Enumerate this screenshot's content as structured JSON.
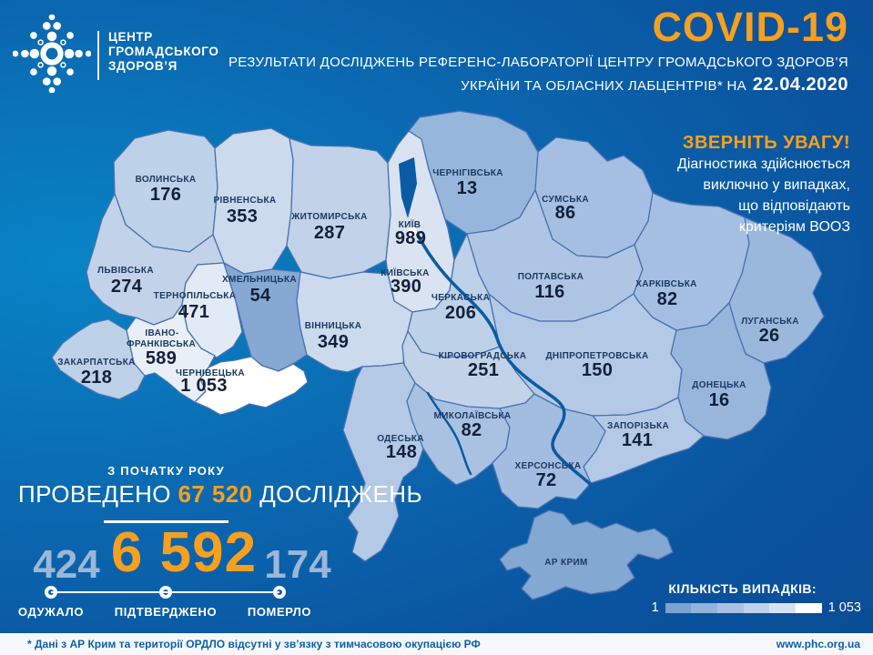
{
  "header": {
    "logo_lines": [
      "ЦЕНТР",
      "ГРОМАДСЬКОГО",
      "ЗДОРОВ’Я"
    ],
    "title": "COVID-19",
    "subtitle_line1": "РЕЗУЛЬТАТИ ДОСЛІДЖЕНЬ РЕФЕРЕНС-ЛАБОРАТОРІЇ ЦЕНТРУ ГРОМАДСЬКОГО ЗДОРОВ’Я",
    "subtitle_line2": "УКРАЇНИ ТА ОБЛАСНИХ ЛАБЦЕНТРІВ* НА",
    "date": "22.04.2020"
  },
  "notice": {
    "title": "ЗВЕРНІТЬ УВАГУ!",
    "lines": [
      "Діагностика здійснюється",
      "виключно у випадках,",
      "що відповідають",
      "критеріям ВООЗ"
    ]
  },
  "stats": {
    "period_label": "З ПОЧАТКУ РОКУ",
    "tests_prefix": "ПРОВЕДЕНО",
    "tests_value": "67 520",
    "tests_suffix": "ДОСЛІДЖЕНЬ",
    "recovered": {
      "value": "424",
      "label": "ОДУЖАЛО"
    },
    "confirmed": {
      "value": "6 592",
      "label": "ПІДТВЕРДЖЕНО"
    },
    "died": {
      "value": "174",
      "label": "ПОМЕРЛО"
    }
  },
  "legend": {
    "title": "КІЛЬКІСТЬ ВИПАДКІВ:",
    "min": "1",
    "max": "1 053",
    "colors": [
      "#7ba3d0",
      "#92b3da",
      "#a9c2e2",
      "#bfd2ea",
      "#d8e3f2",
      "#ffffff"
    ]
  },
  "footer": {
    "note": "* Дані з АР Крим та території ОРДЛО відсутні у зв’язку з тимчасовою окупацією РФ",
    "website": "www.phc.org.ua"
  },
  "colors": {
    "accent_orange": "#f7a01d",
    "background_blue": "#0a5aa5",
    "footer_text": "#0e5fa9",
    "muted_stat_blue": "#9cb7d8",
    "region_max_color": "#ffffff",
    "region_min_color": "#7ba3d0"
  },
  "map": {
    "regions": [
      {
        "key": "volyn",
        "name": "ВОЛИНСЬКА",
        "value": "176",
        "color": "#bdd1e8"
      },
      {
        "key": "rivne",
        "name": "РІВНЕНСЬКА",
        "value": "353",
        "color": "#ccdaee"
      },
      {
        "key": "zhytomyr",
        "name": "ЖИТОМИРСЬКА",
        "value": "287",
        "color": "#c2d3e9"
      },
      {
        "key": "chernihiv",
        "name": "ЧЕРНІГІВСЬКА",
        "value": "13",
        "color": "#97b6db"
      },
      {
        "key": "sumy",
        "name": "СУМСЬКА",
        "value": "86",
        "color": "#a4bfe1"
      },
      {
        "key": "kyiv_city",
        "name": "КИЇВ",
        "value": "989",
        "color": "#ffffff"
      },
      {
        "key": "kyivska",
        "name": "КИЇВСЬКА",
        "value": "390",
        "color": "#d9e3f1"
      },
      {
        "key": "lviv",
        "name": "ЛЬВІВСЬКА",
        "value": "274",
        "color": "#c2d3e9"
      },
      {
        "key": "ternopil",
        "name": "ТЕРНОПІЛЬСЬКА",
        "value": "471",
        "color": "#e2eaf5"
      },
      {
        "key": "khmelnytskyi",
        "name": "ХМЕЛЬНИЦЬКА",
        "value": "54",
        "color": "#85a9d2"
      },
      {
        "key": "vinnytsia",
        "name": "ВІННИЦЬКА",
        "value": "349",
        "color": "#ccdaee"
      },
      {
        "key": "cherkasy",
        "name": "ЧЕРКАСЬКА",
        "value": "206",
        "color": "#bdd1e8"
      },
      {
        "key": "poltava",
        "name": "ПОЛТАВСЬКА",
        "value": "116",
        "color": "#aec6e4"
      },
      {
        "key": "kharkiv",
        "name": "ХАРКІВСЬКА",
        "value": "82",
        "color": "#a4bfe1"
      },
      {
        "key": "luhansk",
        "name": "ЛУГАНСЬКА",
        "value": "26",
        "color": "#9ab8dc"
      },
      {
        "key": "ivano",
        "name_lines": [
          "ІВАНО-",
          "ФРАНКІВСЬКА"
        ],
        "value": "589",
        "color": "#e9eff7"
      },
      {
        "key": "zakarpattia",
        "name": "ЗАКАРПАТСЬКА",
        "value": "218",
        "color": "#bdd1e8"
      },
      {
        "key": "chernivtsi",
        "name": "ЧЕРНІВЕЦЬКА",
        "value": "1 053",
        "color": "#ffffff"
      },
      {
        "key": "kirovohrad",
        "name": "КІРОВОГРАДСЬКА",
        "value": "251",
        "color": "#c2d3e9"
      },
      {
        "key": "dnipro",
        "name": "ДНІПРОПЕТРОВСЬКА",
        "value": "150",
        "color": "#b3c9e5"
      },
      {
        "key": "donetsk",
        "name": "ДОНЕЦЬКА",
        "value": "16",
        "color": "#98b6db"
      },
      {
        "key": "odesa",
        "name": "ОДЕСЬКА",
        "value": "148",
        "color": "#b3c9e5"
      },
      {
        "key": "mykolaiv",
        "name": "МИКОЛАЇВСЬКА",
        "value": "82",
        "color": "#a9c2e2"
      },
      {
        "key": "zaporizhzhia",
        "name": "ЗАПОРІЗЬКА",
        "value": "141",
        "color": "#b3c9e5"
      },
      {
        "key": "kherson",
        "name": "ХЕРСОНСЬКА",
        "value": "72",
        "color": "#a2bde0"
      },
      {
        "key": "crimea",
        "name": "АР КРИМ",
        "value": "",
        "color": "#83a8d1"
      }
    ]
  }
}
